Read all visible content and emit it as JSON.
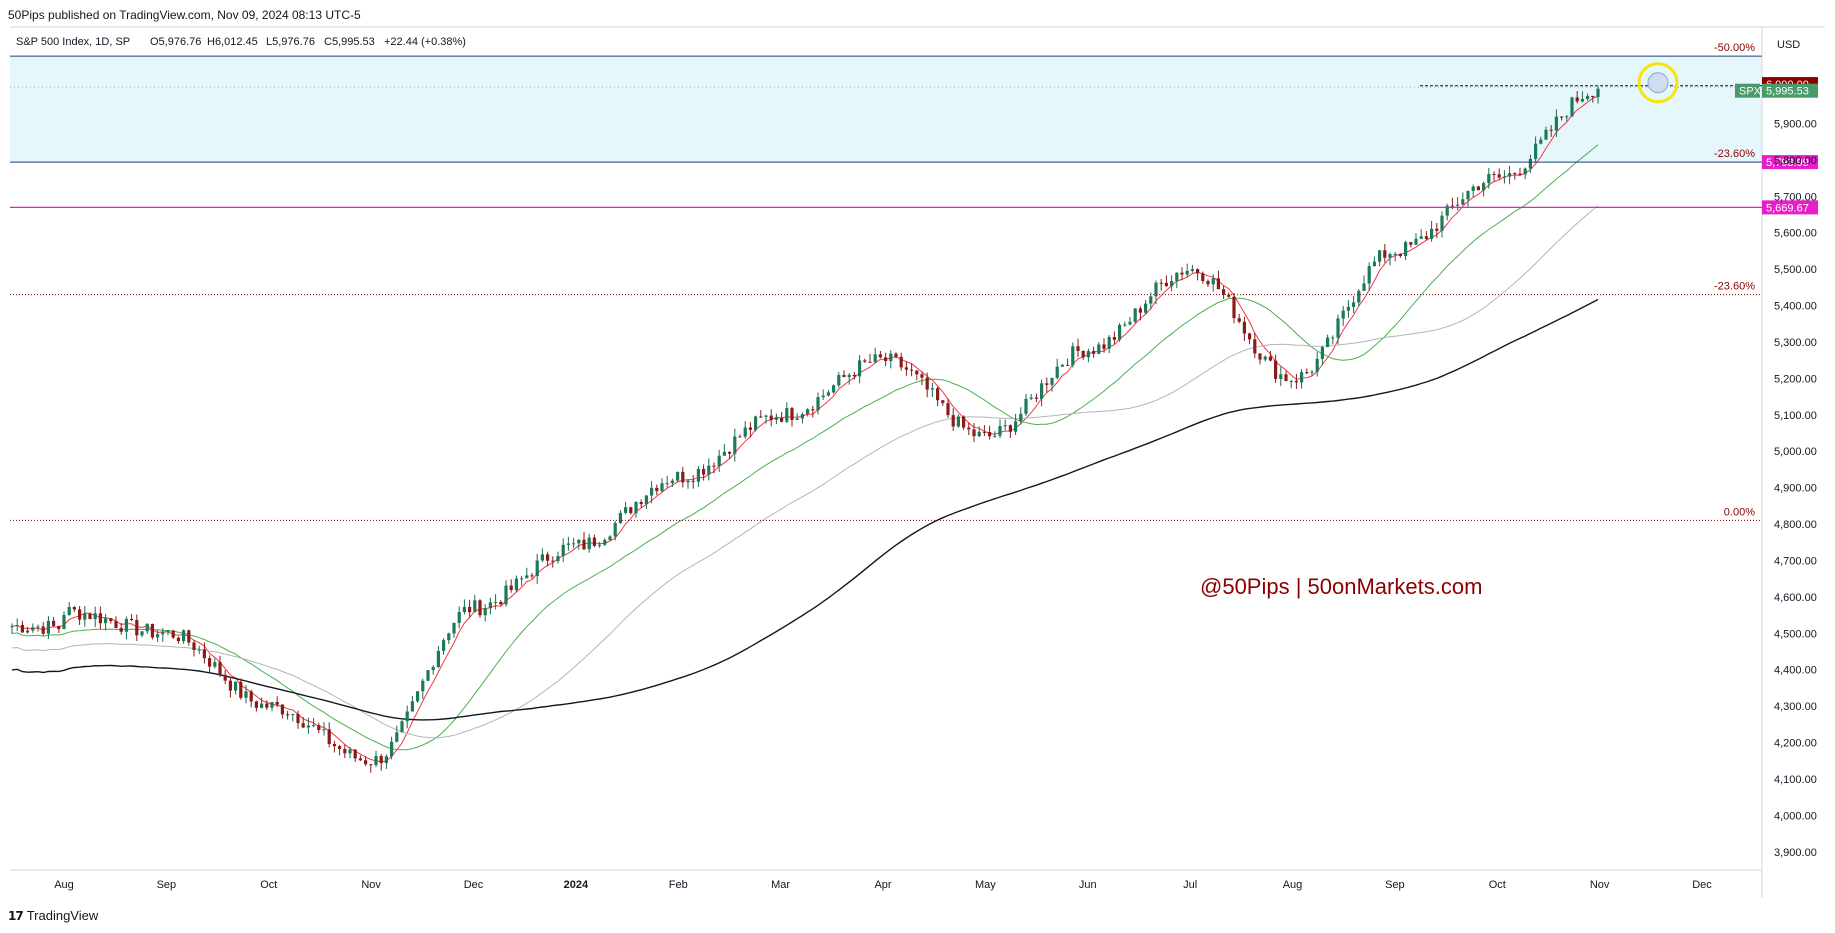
{
  "header": {
    "published": "50Pips published on TradingView.com, Nov 09, 2024 08:13 UTC-5"
  },
  "legend": {
    "symbol": "S&P 500 Index, 1D, SP",
    "open": "O5,976.76",
    "high": "H6,012.45",
    "low": "L5,976.76",
    "close": "C5,995.53",
    "change": "+22.44 (+0.38%)"
  },
  "currency": "USD",
  "watermark": "@50Pips | 50onMarkets.com",
  "footer": {
    "logo_text": "TradingView"
  },
  "colors": {
    "bull": "#26a69a",
    "bull_body": "#1b7a5a",
    "bear": "#8b1a1a",
    "ma_fast": "#f23645",
    "ma_50": "#4caf50",
    "ma_100": "#b2b5be",
    "ma_200": "#131722",
    "zone_fill": "#e6f7fb",
    "fib_line": "#1c3f7a",
    "magenta": "#e91ec9",
    "dark_red": "#8b0000",
    "spx_tag": "#4a9a6a",
    "highlight_circle": "#f5e50a"
  },
  "chart_data": {
    "type": "candlestick",
    "title": "S&P 500 Index, 1D, SP",
    "ylim": [
      3850,
      6165
    ],
    "y_ticks": [
      3900,
      4000,
      4100,
      4200,
      4300,
      4400,
      4500,
      4600,
      4700,
      4800,
      4900,
      5000,
      5100,
      5200,
      5300,
      5400,
      5500,
      5600,
      5700,
      5800,
      5900
    ],
    "x_ticks": [
      "Aug",
      "Sep",
      "Oct",
      "Nov",
      "Dec",
      "2024",
      "Feb",
      "Mar",
      "Apr",
      "May",
      "Jun",
      "Jul",
      "Aug",
      "Sep",
      "Oct",
      "Nov",
      "Dec"
    ],
    "key_closes": [
      {
        "label": "Aug",
        "value": 4560
      },
      {
        "label": "Sep",
        "value": 4500
      },
      {
        "label": "Oct",
        "value": 4300
      },
      {
        "label": "Nov",
        "value": 4150
      },
      {
        "label": "Dec",
        "value": 4570
      },
      {
        "label": "2024",
        "value": 4740
      },
      {
        "label": "Feb",
        "value": 4930
      },
      {
        "label": "Mar",
        "value": 5100
      },
      {
        "label": "Apr",
        "value": 5250
      },
      {
        "label": "May",
        "value": 5040
      },
      {
        "label": "Jun",
        "value": 5280
      },
      {
        "label": "Jul",
        "value": 5500
      },
      {
        "label": "Aug",
        "value": 5200
      },
      {
        "label": "Sep",
        "value": 5550
      },
      {
        "label": "Oct",
        "value": 5750
      },
      {
        "label": "Nov",
        "value": 5995.53
      }
    ],
    "fib_levels": [
      {
        "label": "-50.00%",
        "value": 6085
      },
      {
        "label": "-23.60%",
        "value": 5793.99
      },
      {
        "label": "-23.60%",
        "value": 5430
      },
      {
        "label": "0.00%",
        "value": 4810
      }
    ],
    "price_tags": [
      {
        "text": "6,000.00",
        "value": 6000
      },
      {
        "text": "5,995.53",
        "value": 5995.53,
        "name": "SPX"
      },
      {
        "text": "5,793.99",
        "value": 5793.99
      },
      {
        "text": "5,669.67",
        "value": 5669.67
      }
    ],
    "support_line": 5669.67,
    "last_close": 5995.53
  }
}
